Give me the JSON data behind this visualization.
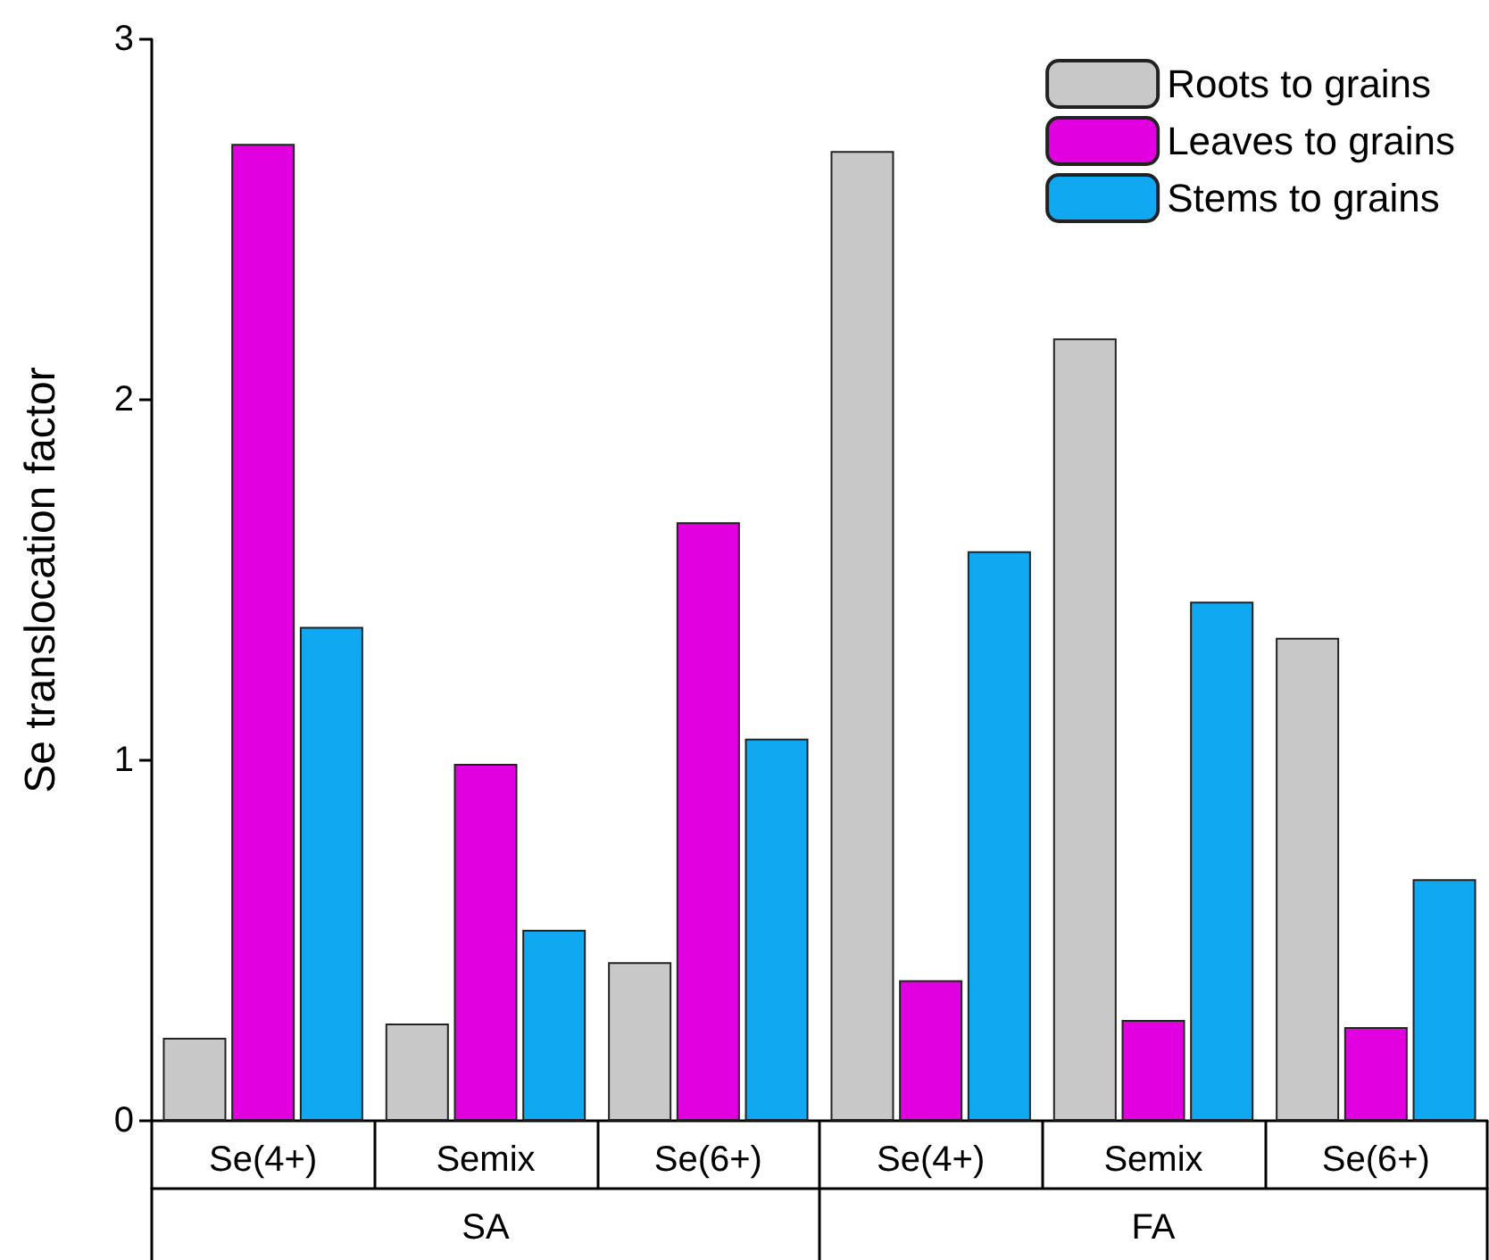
{
  "chart_data": {
    "type": "bar",
    "ylabel": "Se translocation factor",
    "categories": [
      "Se(4+)",
      "Semix",
      "Se(6+)",
      "Se(4+)",
      "Semix",
      "Se(6+)"
    ],
    "annotations": [
      "SA",
      "FA"
    ],
    "series": [
      {
        "name": "Roots to grains",
        "color": "#c8c8c8",
        "values": [
          0.23,
          0.27,
          0.44,
          2.69,
          2.17,
          1.34
        ]
      },
      {
        "name": "Leaves to grains",
        "color": "#e000e0",
        "values": [
          2.71,
          0.99,
          1.66,
          0.39,
          0.28,
          0.26
        ]
      },
      {
        "name": "Stems to grains",
        "color": "#10a8f0",
        "values": [
          1.37,
          0.53,
          1.06,
          1.58,
          1.44,
          0.67
        ]
      }
    ],
    "ylim": [
      0,
      3
    ],
    "yticks": [
      0,
      1,
      2,
      3
    ],
    "grid": false,
    "legend": "top right"
  }
}
